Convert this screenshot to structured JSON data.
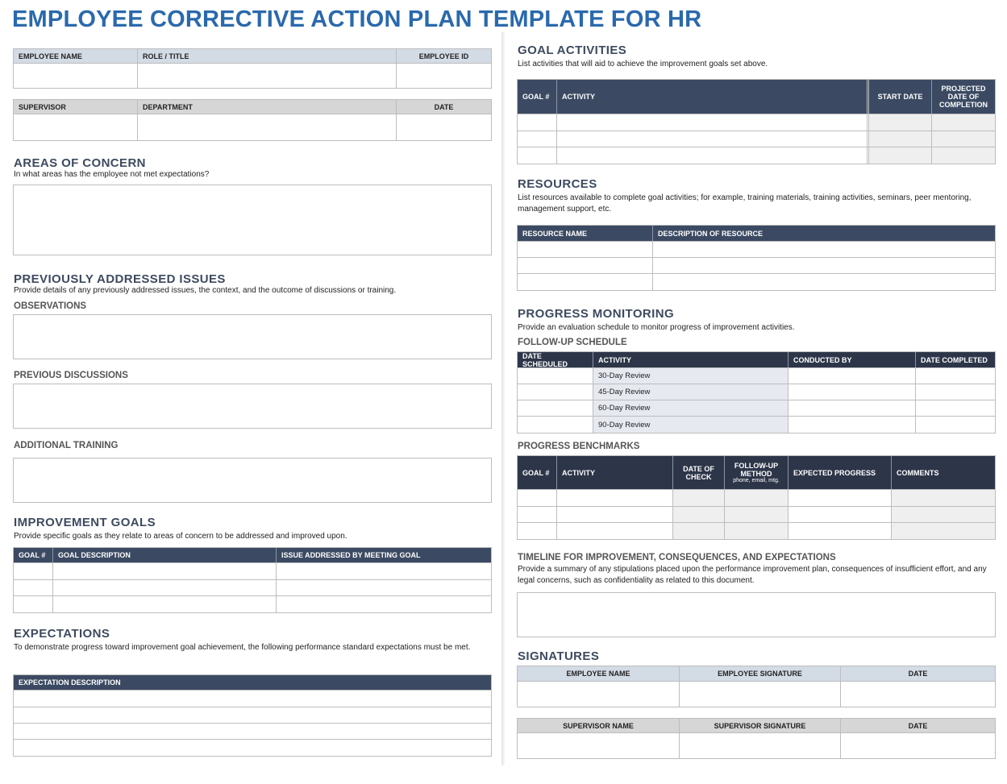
{
  "title": "EMPLOYEE CORRECTIVE ACTION PLAN TEMPLATE FOR HR",
  "employee_table": {
    "headers": [
      "EMPLOYEE NAME",
      "ROLE / TITLE",
      "EMPLOYEE ID"
    ]
  },
  "supervisor_table": {
    "headers": [
      "SUPERVISOR",
      "DEPARTMENT",
      "DATE"
    ]
  },
  "areas_of_concern": {
    "heading": "AREAS OF CONCERN",
    "subtitle": "In what areas has the employee not met expectations?"
  },
  "previous_issues": {
    "heading": "PREVIOUSLY ADDRESSED ISSUES",
    "subtitle": "Provide details of any previously addressed issues, the context, and the outcome of discussions or training.",
    "observations": "OBSERVATIONS",
    "previous_discussions": "PREVIOUS DISCUSSIONS",
    "additional_training": "ADDITIONAL TRAINING"
  },
  "improvement_goals": {
    "heading": "IMPROVEMENT GOALS",
    "subtitle": "Provide specific goals as they relate to areas of concern to be addressed and improved upon.",
    "headers": [
      "GOAL #",
      "GOAL DESCRIPTION",
      "ISSUE ADDRESSED BY MEETING GOAL"
    ]
  },
  "expectations": {
    "heading": "EXPECTATIONS",
    "subtitle": "To demonstrate progress toward improvement goal achievement, the following performance standard expectations must be met.",
    "headers": [
      "EXPECTATION DESCRIPTION"
    ]
  },
  "goal_activities": {
    "heading": "GOAL ACTIVITIES",
    "subtitle": "List activities that will aid to achieve the improvement goals set above.",
    "headers": [
      "GOAL #",
      "ACTIVITY",
      "START DATE",
      "PROJECTED DATE OF COMPLETION"
    ]
  },
  "resources": {
    "heading": "RESOURCES",
    "subtitle": "List resources available to complete goal activities; for example, training materials, training activities, seminars, peer mentoring, management support, etc.",
    "headers": [
      "RESOURCE NAME",
      "DESCRIPTION OF RESOURCE"
    ]
  },
  "progress_monitoring": {
    "heading": "PROGRESS MONITORING",
    "subtitle": "Provide an evaluation schedule to monitor progress of improvement activities.",
    "follow_up": {
      "label": "FOLLOW-UP SCHEDULE",
      "headers": [
        "DATE SCHEDULED",
        "ACTIVITY",
        "CONDUCTED BY",
        "DATE COMPLETED"
      ],
      "activities": [
        "30-Day Review",
        "45-Day Review",
        "60-Day Review",
        "90-Day Review"
      ]
    },
    "benchmarks": {
      "label": "PROGRESS BENCHMARKS",
      "headers": [
        "GOAL #",
        "ACTIVITY",
        "DATE OF CHECK",
        "FOLLOW-UP METHOD",
        "EXPECTED PROGRESS",
        "COMMENTS"
      ],
      "method_note": "phone, email, mtg."
    }
  },
  "timeline": {
    "heading": "TIMELINE FOR IMPROVEMENT, CONSEQUENCES, AND EXPECTATIONS",
    "subtitle": "Provide a summary of any stipulations placed upon the performance improvement plan, consequences of insufficient effort, and any legal concerns, such as confidentiality as related to this document."
  },
  "signatures": {
    "heading": "SIGNATURES",
    "employee_headers": [
      "EMPLOYEE NAME",
      "EMPLOYEE SIGNATURE",
      "DATE"
    ],
    "supervisor_headers": [
      "SUPERVISOR NAME",
      "SUPERVISOR SIGNATURE",
      "DATE"
    ]
  },
  "colors": {
    "title": "#2a69ad",
    "header_dark": "#3b4a62",
    "header_navy": "#2d3649",
    "header_light": "#d3dbe5"
  }
}
